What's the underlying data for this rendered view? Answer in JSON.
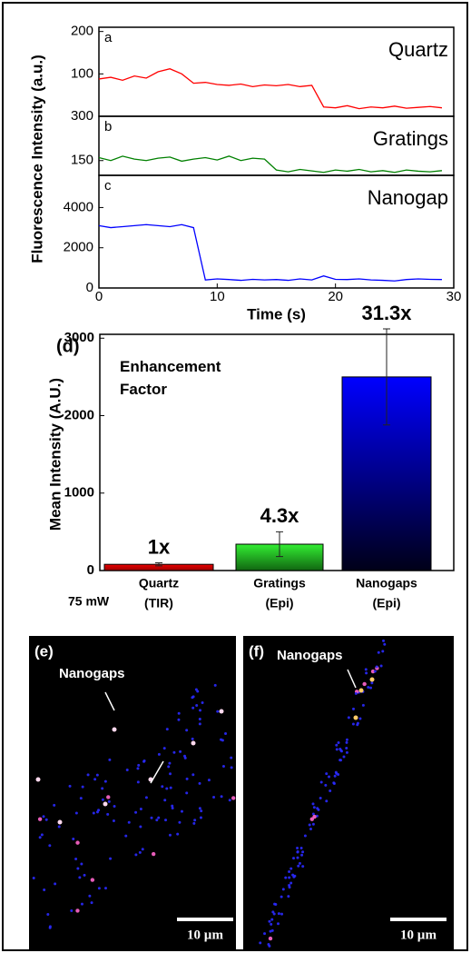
{
  "chart_data": [
    {
      "type": "line",
      "panel_label": "a",
      "ylabel": "Fluorescence Intensity (a.u.)",
      "x": [
        0,
        1,
        2,
        3,
        4,
        5,
        6,
        7,
        8,
        9,
        10,
        11,
        12,
        13,
        14,
        15,
        16,
        17,
        18,
        19,
        20,
        21,
        22,
        23,
        24,
        25,
        26,
        27,
        28,
        29
      ],
      "series": [
        {
          "name": "Quartz",
          "color": "#ff0000",
          "values": [
            88,
            92,
            85,
            95,
            90,
            105,
            112,
            100,
            78,
            80,
            75,
            73,
            76,
            70,
            74,
            72,
            75,
            70,
            73,
            22,
            20,
            25,
            18,
            22,
            20,
            24,
            19,
            21,
            23,
            20
          ]
        }
      ],
      "xlim": [
        0,
        30
      ],
      "ylim": [
        0,
        210
      ],
      "yticks": [
        100,
        200
      ]
    },
    {
      "type": "line",
      "panel_label": "b",
      "x": [
        0,
        1,
        2,
        3,
        4,
        5,
        6,
        7,
        8,
        9,
        10,
        11,
        12,
        13,
        14,
        15,
        16,
        17,
        18,
        19,
        20,
        21,
        22,
        23,
        24,
        25,
        26,
        27,
        28,
        29
      ],
      "series": [
        {
          "name": "Gratings",
          "color": "#008000",
          "values": [
            160,
            150,
            165,
            155,
            150,
            158,
            162,
            148,
            155,
            160,
            152,
            165,
            150,
            158,
            155,
            118,
            112,
            120,
            115,
            110,
            118,
            114,
            120,
            112,
            116,
            110,
            118,
            114,
            112,
            116
          ]
        }
      ],
      "xlim": [
        0,
        30
      ],
      "ylim": [
        100,
        300
      ],
      "yticks": [
        150,
        300
      ]
    },
    {
      "type": "line",
      "panel_label": "c",
      "xlabel": "Time (s)",
      "x": [
        0,
        1,
        2,
        3,
        4,
        5,
        6,
        7,
        8,
        9,
        10,
        11,
        12,
        13,
        14,
        15,
        16,
        17,
        18,
        19,
        20,
        21,
        22,
        23,
        24,
        25,
        26,
        27,
        28,
        29
      ],
      "series": [
        {
          "name": "Nanogap",
          "color": "#0000ff",
          "values": [
            3100,
            3000,
            3050,
            3100,
            3150,
            3100,
            3050,
            3150,
            3000,
            400,
            450,
            420,
            380,
            430,
            400,
            420,
            380,
            450,
            400,
            600,
            430,
            420,
            450,
            400,
            380,
            350,
            420,
            450,
            430,
            420
          ]
        }
      ],
      "xlim": [
        0,
        30
      ],
      "ylim": [
        0,
        5600
      ],
      "yticks": [
        0,
        2000,
        4000
      ],
      "xticks": [
        0,
        10,
        20,
        30
      ]
    },
    {
      "type": "bar",
      "panel_label": "(d)",
      "ylabel": "Mean Intensity (A.U.)",
      "title": "Enhancement Factor",
      "categories": [
        "Quartz",
        "Gratings",
        "Nanogaps"
      ],
      "category_sublabels": [
        "(TIR)",
        "(Epi)",
        "(Epi)"
      ],
      "values": [
        80,
        340,
        2500
      ],
      "errors": [
        20,
        160,
        620
      ],
      "bar_labels": [
        "1x",
        "4.3x",
        "31.3x"
      ],
      "power_label": "75 mW",
      "colors": [
        "#cc0000",
        "#33cc33",
        "#0000ff"
      ],
      "ylim": [
        0,
        3050
      ],
      "yticks": [
        0,
        1000,
        2000,
        3000
      ]
    }
  ],
  "images": [
    {
      "label": "(e)",
      "annotation": "Nanogaps",
      "scale_bar": "10 µm"
    },
    {
      "label": "(f)",
      "annotation": "Nanogaps",
      "scale_bar": "10 µm"
    }
  ]
}
